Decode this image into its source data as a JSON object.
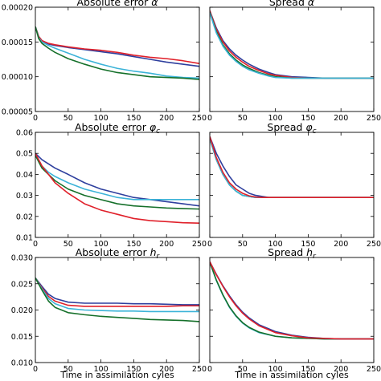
{
  "figure": {
    "xlabel": "Time in assimilation cyles"
  },
  "chart_data": [
    {
      "type": "line",
      "title": "Absolute error α",
      "xlim": [
        0,
        250
      ],
      "ylim": [
        5e-05,
        0.0002
      ],
      "xticks": [
        0,
        50,
        100,
        150,
        200,
        250
      ],
      "xtick_labels": [
        "0",
        "50",
        "100",
        "150",
        "200",
        "250"
      ],
      "yticks": [
        5e-05,
        0.0001,
        0.00015,
        0.0002
      ],
      "ytick_labels": [
        "0.00005",
        "0.00010",
        "0.00015",
        "0.00020"
      ],
      "x": [
        0,
        5,
        10,
        20,
        30,
        50,
        75,
        100,
        125,
        150,
        175,
        200,
        225,
        250
      ],
      "series": [
        {
          "color": "#2e3f9e",
          "values": [
            0.000172,
            0.000158,
            0.000152,
            0.000147,
            0.000145,
            0.000142,
            0.000139,
            0.000136,
            0.000133,
            0.000129,
            0.000125,
            0.000121,
            0.000118,
            0.000115
          ]
        },
        {
          "color": "#e0202a",
          "values": [
            0.000172,
            0.000158,
            0.000152,
            0.000148,
            0.000146,
            0.000143,
            0.00014,
            0.000138,
            0.000135,
            0.000131,
            0.000128,
            0.000126,
            0.000123,
            0.000119
          ]
        },
        {
          "color": "#3cb3d8",
          "values": [
            0.000172,
            0.000156,
            0.00015,
            0.000145,
            0.000141,
            0.000134,
            0.000125,
            0.000118,
            0.000112,
            0.000108,
            0.000105,
            0.000101,
            9.9e-05,
            9.8e-05
          ]
        },
        {
          "color": "#15702a",
          "values": [
            0.000172,
            0.000155,
            0.000148,
            0.000141,
            0.000135,
            0.000126,
            0.000118,
            0.000111,
            0.000106,
            0.000103,
            0.0001,
            9.9e-05,
            9.8e-05,
            9.6e-05
          ]
        }
      ]
    },
    {
      "type": "line",
      "title": "Spread α",
      "xlim": [
        0,
        250
      ],
      "ylim": [
        5e-05,
        0.0002
      ],
      "xticks": [
        0,
        50,
        100,
        150,
        200,
        250
      ],
      "xtick_labels": [
        "0",
        "50",
        "100",
        "150",
        "200",
        "250"
      ],
      "x": [
        0,
        10,
        20,
        30,
        40,
        50,
        60,
        75,
        90,
        100,
        125,
        150,
        175,
        200,
        250
      ],
      "series": [
        {
          "color": "#2e3f9e",
          "values": [
            0.000195,
            0.00017,
            0.000152,
            0.00014,
            0.000131,
            0.000124,
            0.000118,
            0.000111,
            0.000106,
            0.000103,
            0.0001,
            9.9e-05,
            9.8e-05,
            9.8e-05,
            9.8e-05
          ]
        },
        {
          "color": "#e0202a",
          "values": [
            0.000195,
            0.000168,
            0.00015,
            0.000137,
            0.000128,
            0.000121,
            0.000115,
            0.000109,
            0.000104,
            0.000102,
            9.9e-05,
            9.8e-05,
            9.8e-05,
            9.8e-05,
            9.8e-05
          ]
        },
        {
          "color": "#15702a",
          "values": [
            0.000193,
            0.000165,
            0.000146,
            0.000133,
            0.000124,
            0.000117,
            0.000112,
            0.000106,
            0.000102,
            0.0001,
            9.8e-05,
            9.8e-05,
            9.8e-05,
            9.8e-05,
            9.8e-05
          ]
        },
        {
          "color": "#3cb3d8",
          "values": [
            0.000192,
            0.000163,
            0.000144,
            0.000131,
            0.000122,
            0.000115,
            0.00011,
            0.000105,
            0.000101,
            9.9e-05,
            9.8e-05,
            9.8e-05,
            9.8e-05,
            9.8e-05,
            9.8e-05
          ]
        }
      ]
    },
    {
      "type": "line",
      "title": "Absolute error φ_c",
      "xlim": [
        0,
        250
      ],
      "ylim": [
        0.01,
        0.06
      ],
      "xticks": [
        0,
        50,
        100,
        150,
        200,
        250
      ],
      "xtick_labels": [
        "0",
        "50",
        "100",
        "150",
        "200",
        "250"
      ],
      "yticks": [
        0.01,
        0.02,
        0.03,
        0.04,
        0.05,
        0.06
      ],
      "ytick_labels": [
        "0.01",
        "0.02",
        "0.03",
        "0.04",
        "0.05",
        "0.06"
      ],
      "x": [
        0,
        10,
        20,
        30,
        50,
        75,
        100,
        125,
        150,
        175,
        200,
        225,
        250
      ],
      "series": [
        {
          "color": "#2e3f9e",
          "values": [
            0.05,
            0.047,
            0.045,
            0.043,
            0.04,
            0.036,
            0.033,
            0.031,
            0.029,
            0.028,
            0.027,
            0.026,
            0.025
          ]
        },
        {
          "color": "#3cb3d8",
          "values": [
            0.05,
            0.044,
            0.041,
            0.039,
            0.036,
            0.033,
            0.031,
            0.029,
            0.028,
            0.028,
            0.028,
            0.028,
            0.028
          ]
        },
        {
          "color": "#15702a",
          "values": [
            0.049,
            0.043,
            0.04,
            0.037,
            0.033,
            0.03,
            0.028,
            0.026,
            0.025,
            0.0245,
            0.024,
            0.0237,
            0.0235
          ]
        },
        {
          "color": "#e0202a",
          "values": [
            0.05,
            0.044,
            0.04,
            0.036,
            0.031,
            0.026,
            0.023,
            0.021,
            0.019,
            0.018,
            0.0175,
            0.017,
            0.0168
          ]
        }
      ]
    },
    {
      "type": "line",
      "title": "Spread φ_c",
      "xlim": [
        0,
        250
      ],
      "ylim": [
        0.01,
        0.06
      ],
      "xticks": [
        0,
        50,
        100,
        150,
        200,
        250
      ],
      "xtick_labels": [
        "0",
        "50",
        "100",
        "150",
        "200",
        "250"
      ],
      "x": [
        0,
        10,
        20,
        30,
        40,
        50,
        60,
        70,
        80,
        90,
        100,
        125,
        150,
        200,
        250
      ],
      "series": [
        {
          "color": "#2e3f9e",
          "values": [
            0.058,
            0.05,
            0.044,
            0.039,
            0.035,
            0.033,
            0.031,
            0.03,
            0.0295,
            0.029,
            0.029,
            0.029,
            0.029,
            0.029,
            0.029
          ]
        },
        {
          "color": "#15702a",
          "values": [
            0.057,
            0.047,
            0.04,
            0.035,
            0.032,
            0.03,
            0.0295,
            0.029,
            0.029,
            0.029,
            0.029,
            0.029,
            0.029,
            0.029,
            0.029
          ]
        },
        {
          "color": "#3cb3d8",
          "values": [
            0.057,
            0.047,
            0.04,
            0.035,
            0.032,
            0.03,
            0.0295,
            0.029,
            0.029,
            0.029,
            0.029,
            0.029,
            0.029,
            0.029,
            0.029
          ]
        },
        {
          "color": "#e0202a",
          "values": [
            0.058,
            0.048,
            0.041,
            0.036,
            0.033,
            0.031,
            0.0298,
            0.0292,
            0.029,
            0.029,
            0.029,
            0.029,
            0.029,
            0.029,
            0.029
          ]
        }
      ]
    },
    {
      "type": "line",
      "title": "Absolute error h_r",
      "xlim": [
        0,
        250
      ],
      "ylim": [
        0.01,
        0.03
      ],
      "xticks": [
        0,
        50,
        100,
        150,
        200,
        250
      ],
      "xtick_labels": [
        "0",
        "50",
        "100",
        "150",
        "200",
        "250"
      ],
      "yticks": [
        0.01,
        0.015,
        0.02,
        0.025,
        0.03
      ],
      "ytick_labels": [
        "0.010",
        "0.015",
        "0.020",
        "0.025",
        "0.030"
      ],
      "x": [
        0,
        10,
        20,
        30,
        50,
        75,
        100,
        125,
        150,
        175,
        200,
        225,
        250
      ],
      "series": [
        {
          "color": "#2e3f9e",
          "values": [
            0.0261,
            0.0245,
            0.023,
            0.0222,
            0.0215,
            0.0213,
            0.0213,
            0.0213,
            0.0212,
            0.0212,
            0.0211,
            0.021,
            0.021
          ]
        },
        {
          "color": "#e0202a",
          "values": [
            0.0261,
            0.0242,
            0.0226,
            0.0217,
            0.0209,
            0.0207,
            0.0207,
            0.0207,
            0.0207,
            0.0207,
            0.0207,
            0.0208,
            0.0208
          ]
        },
        {
          "color": "#3cb3d8",
          "values": [
            0.0261,
            0.024,
            0.0222,
            0.0212,
            0.0203,
            0.02,
            0.0199,
            0.0198,
            0.0198,
            0.0197,
            0.0197,
            0.0197,
            0.0197
          ]
        },
        {
          "color": "#15702a",
          "values": [
            0.0261,
            0.0238,
            0.0217,
            0.0205,
            0.0195,
            0.0191,
            0.0188,
            0.0186,
            0.0184,
            0.0182,
            0.0181,
            0.018,
            0.0178
          ]
        }
      ]
    },
    {
      "type": "line",
      "title": "Spread h_r",
      "xlim": [
        0,
        250
      ],
      "ylim": [
        0.01,
        0.03
      ],
      "xticks": [
        0,
        50,
        100,
        150,
        200,
        250
      ],
      "xtick_labels": [
        "0",
        "50",
        "100",
        "150",
        "200",
        "250"
      ],
      "x": [
        0,
        10,
        20,
        30,
        40,
        50,
        60,
        75,
        100,
        125,
        150,
        175,
        200,
        250
      ],
      "series": [
        {
          "color": "#3cb3d8",
          "values": [
            0.0291,
            0.0256,
            0.0228,
            0.0205,
            0.0188,
            0.0175,
            0.0166,
            0.0157,
            0.015,
            0.0147,
            0.0146,
            0.0145,
            0.0145,
            0.0145
          ]
        },
        {
          "color": "#15702a",
          "values": [
            0.0291,
            0.0257,
            0.0229,
            0.0206,
            0.0189,
            0.0176,
            0.0167,
            0.0158,
            0.015,
            0.0147,
            0.0146,
            0.0145,
            0.0145,
            0.0145
          ]
        },
        {
          "color": "#2e3f9e",
          "values": [
            0.0292,
            0.0268,
            0.0246,
            0.0227,
            0.021,
            0.0196,
            0.0185,
            0.0172,
            0.0159,
            0.0152,
            0.0148,
            0.0146,
            0.0145,
            0.0145
          ]
        },
        {
          "color": "#e0202a",
          "values": [
            0.0292,
            0.0267,
            0.0245,
            0.0225,
            0.0208,
            0.0194,
            0.0183,
            0.017,
            0.0157,
            0.0151,
            0.0147,
            0.0146,
            0.0145,
            0.0145
          ]
        }
      ]
    }
  ]
}
